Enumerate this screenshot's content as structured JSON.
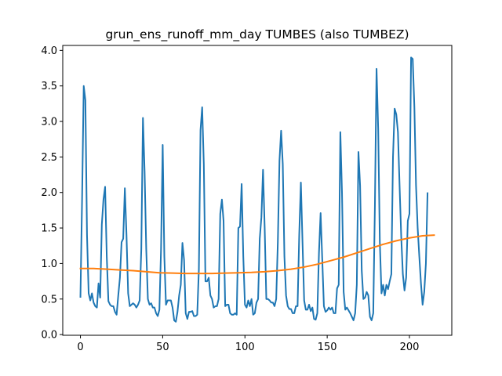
{
  "chart_data": {
    "type": "line",
    "title": "grun_ens_runoff_mm_day TUMBES (also TUMBEZ)",
    "xlabel": "",
    "ylabel": "",
    "xlim": [
      -10.75,
      225.75
    ],
    "ylim": [
      -0.01,
      4.07
    ],
    "grid": false,
    "legend": "none",
    "x_ticks": [
      0,
      50,
      100,
      150,
      200
    ],
    "y_ticks": [
      0.0,
      0.5,
      1.0,
      1.5,
      2.0,
      2.5,
      3.0,
      3.5,
      4.0
    ],
    "x_tick_labels": [
      "0",
      "50",
      "100",
      "150",
      "200"
    ],
    "y_tick_labels": [
      "0.0",
      "0.5",
      "1.0",
      "1.5",
      "2.0",
      "2.5",
      "3.0",
      "3.5",
      "4.0"
    ],
    "series": [
      {
        "color": "#1f77b4",
        "x_start": 0,
        "x_step": 1,
        "values": [
          0.53,
          1.9,
          3.5,
          3.3,
          1.4,
          0.58,
          0.48,
          0.58,
          0.45,
          0.4,
          0.38,
          0.72,
          0.52,
          1.55,
          1.9,
          2.08,
          1.1,
          0.47,
          0.42,
          0.4,
          0.4,
          0.32,
          0.28,
          0.55,
          0.8,
          1.3,
          1.35,
          2.06,
          1.4,
          0.58,
          0.4,
          0.42,
          0.44,
          0.42,
          0.38,
          0.42,
          0.48,
          1.2,
          3.05,
          2.3,
          1.2,
          0.5,
          0.42,
          0.44,
          0.38,
          0.38,
          0.3,
          0.26,
          0.35,
          1.2,
          2.67,
          1.1,
          0.42,
          0.48,
          0.48,
          0.48,
          0.38,
          0.2,
          0.18,
          0.32,
          0.55,
          0.7,
          1.29,
          1.05,
          0.3,
          0.22,
          0.32,
          0.32,
          0.33,
          0.26,
          0.26,
          0.28,
          0.92,
          2.88,
          3.2,
          2.4,
          0.75,
          0.75,
          0.8,
          0.55,
          0.5,
          0.38,
          0.4,
          0.4,
          0.5,
          1.7,
          1.9,
          1.6,
          0.4,
          0.42,
          0.42,
          0.3,
          0.28,
          0.28,
          0.3,
          0.28,
          1.5,
          1.52,
          2.12,
          1.1,
          0.42,
          0.38,
          0.48,
          0.4,
          0.5,
          0.28,
          0.3,
          0.45,
          0.5,
          1.35,
          1.65,
          2.32,
          1.5,
          0.5,
          0.5,
          0.48,
          0.45,
          0.45,
          0.4,
          0.5,
          1.3,
          2.45,
          2.87,
          2.4,
          1.1,
          0.55,
          0.4,
          0.36,
          0.36,
          0.3,
          0.3,
          0.4,
          0.4,
          1.4,
          2.14,
          1.3,
          0.48,
          0.35,
          0.35,
          0.42,
          0.33,
          0.38,
          0.22,
          0.21,
          0.3,
          1.15,
          1.71,
          1.06,
          0.4,
          0.32,
          0.34,
          0.38,
          0.35,
          0.38,
          0.3,
          0.3,
          0.65,
          0.7,
          2.85,
          2.0,
          0.6,
          0.35,
          0.38,
          0.34,
          0.3,
          0.25,
          0.2,
          0.3,
          0.7,
          2.57,
          2.1,
          0.9,
          0.5,
          0.52,
          0.6,
          0.55,
          0.25,
          0.2,
          0.3,
          1.8,
          3.74,
          2.9,
          1.3,
          0.58,
          0.7,
          0.55,
          0.7,
          0.64,
          0.75,
          0.85,
          2.5,
          3.18,
          3.1,
          2.85,
          2.1,
          1.38,
          0.85,
          0.62,
          0.8,
          1.6,
          1.7,
          3.9,
          3.88,
          3.2,
          2.1,
          1.5,
          1.1,
          0.72,
          0.42,
          0.6,
          1.0,
          1.99
        ]
      },
      {
        "color": "#ff7f0e",
        "x": [
          0,
          8,
          16,
          24,
          32,
          40,
          48,
          56,
          64,
          72,
          80,
          88,
          96,
          104,
          112,
          120,
          128,
          136,
          144,
          152,
          160,
          168,
          176,
          184,
          192,
          200,
          208,
          215
        ],
        "values": [
          0.93,
          0.93,
          0.92,
          0.91,
          0.9,
          0.885,
          0.87,
          0.865,
          0.86,
          0.86,
          0.86,
          0.865,
          0.87,
          0.875,
          0.885,
          0.9,
          0.92,
          0.95,
          0.99,
          1.04,
          1.09,
          1.15,
          1.21,
          1.27,
          1.32,
          1.36,
          1.39,
          1.4
        ]
      }
    ]
  }
}
